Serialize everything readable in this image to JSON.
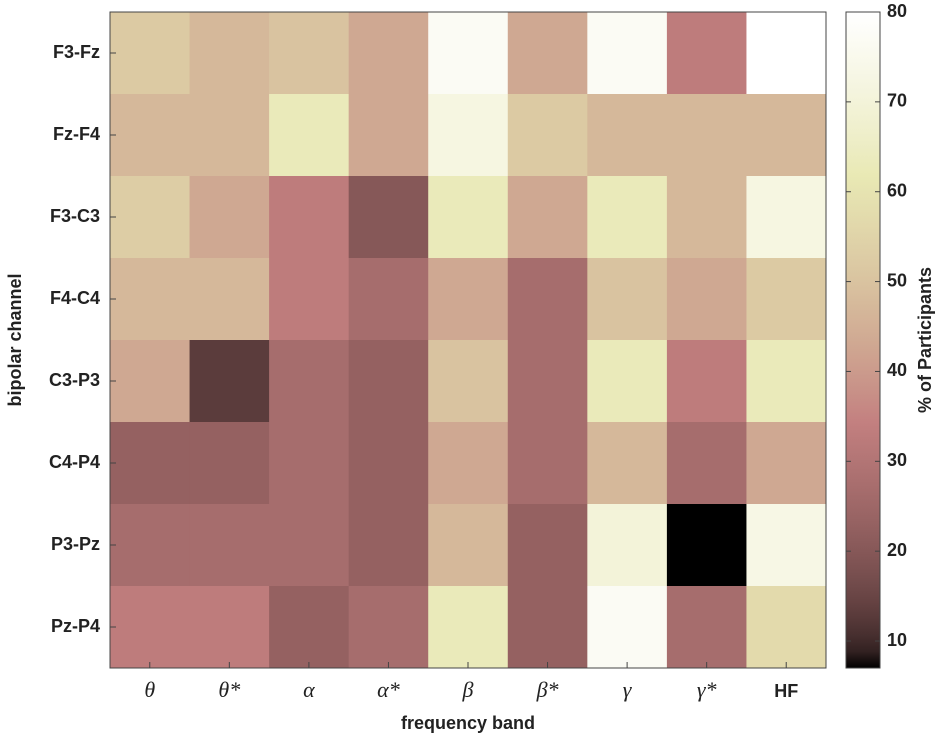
{
  "chart_data": {
    "type": "heatmap",
    "x_label": "frequency band",
    "y_label": "bipolar channel",
    "colorbar_label": "% of Participants",
    "x_categories": [
      "θ",
      "θ*",
      "α",
      "α*",
      "β",
      "β*",
      "γ",
      "γ*",
      "HF"
    ],
    "y_categories": [
      "F3-Fz",
      "Fz-F4",
      "F3-C3",
      "F4-C4",
      "C3-P3",
      "C4-P4",
      "P3-Pz",
      "Pz-P4"
    ],
    "z": [
      [
        52,
        47,
        50,
        43,
        77,
        43,
        77,
        33,
        80
      ],
      [
        47,
        47,
        63,
        43,
        72,
        52,
        47,
        47,
        47
      ],
      [
        53,
        43,
        33,
        20,
        63,
        43,
        63,
        47,
        72
      ],
      [
        47,
        47,
        33,
        27,
        43,
        27,
        50,
        43,
        52
      ],
      [
        43,
        13,
        27,
        23,
        50,
        27,
        63,
        33,
        63
      ],
      [
        23,
        23,
        27,
        23,
        43,
        27,
        47,
        27,
        43
      ],
      [
        27,
        27,
        27,
        23,
        47,
        23,
        70,
        7,
        73
      ],
      [
        33,
        33,
        23,
        27,
        63,
        23,
        77,
        27,
        57
      ]
    ],
    "colormap": "pink",
    "clim": [
      7,
      80
    ],
    "cticks": [
      10,
      20,
      30,
      40,
      50,
      60,
      70,
      80
    ]
  }
}
